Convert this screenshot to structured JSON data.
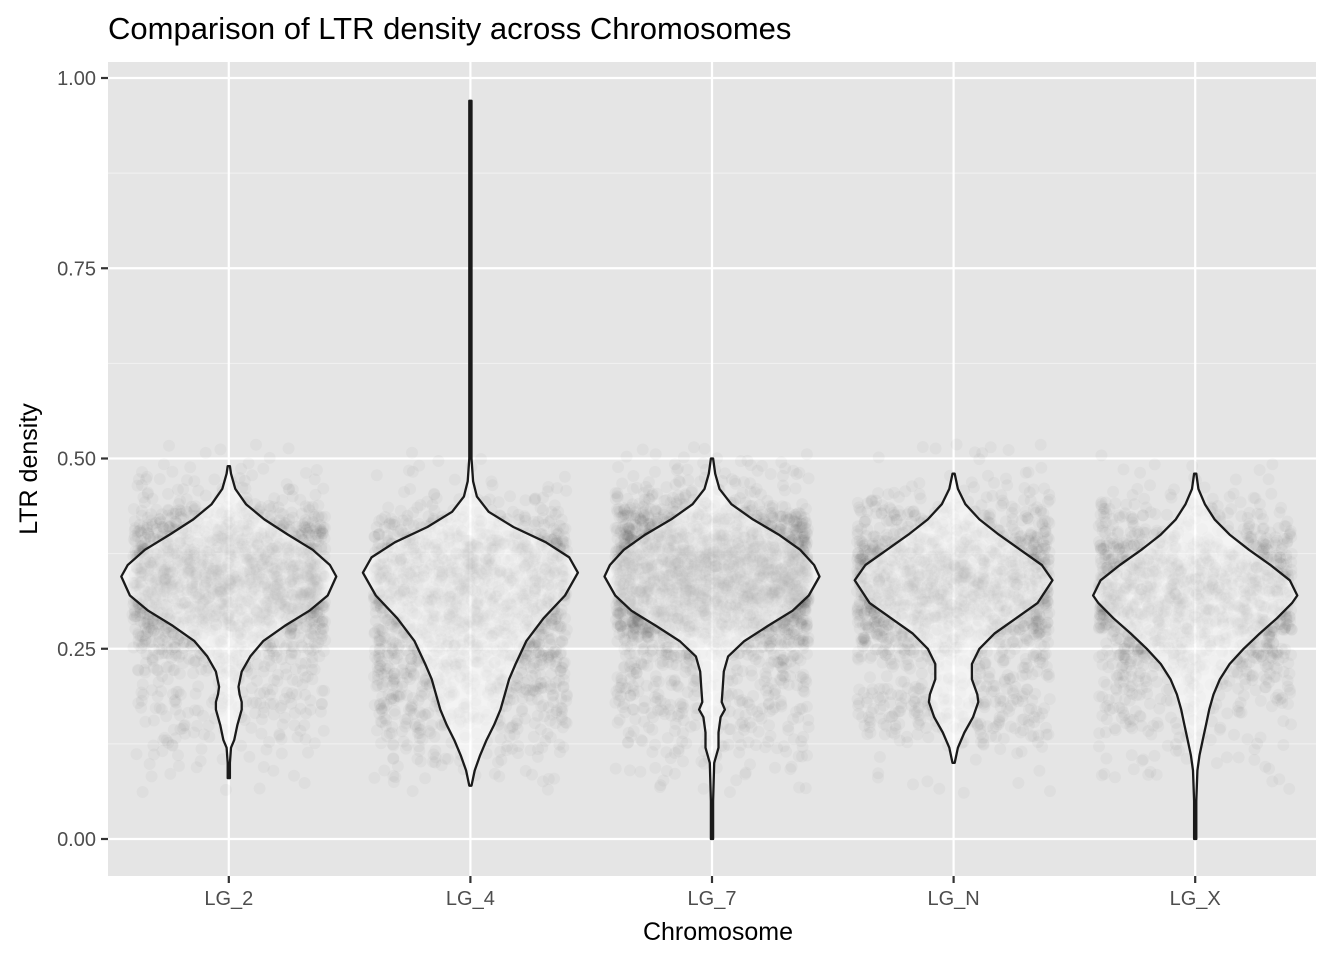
{
  "chart_data": {
    "type": "violin",
    "title": "Comparison of LTR density across Chromosomes",
    "xlabel": "Chromosome",
    "ylabel": "LTR density",
    "categories": [
      "LG_2",
      "LG_4",
      "LG_7",
      "LG_N",
      "LG_X"
    ],
    "ylim": [
      -0.05,
      1.04
    ],
    "y_ticks": [
      0.0,
      0.25,
      0.5,
      0.75,
      1.0
    ],
    "y_tick_labels": [
      "0.00",
      "0.25",
      "0.50",
      "0.75",
      "1.00"
    ],
    "grid": true,
    "background": "#e5e5e5",
    "points": "jittered, low alpha",
    "violins": [
      {
        "category": "LG_2",
        "min": 0.08,
        "max": 0.49,
        "profile": [
          [
            0.08,
            0.01
          ],
          [
            0.1,
            0.01
          ],
          [
            0.12,
            0.02
          ],
          [
            0.13,
            0.05
          ],
          [
            0.15,
            0.08
          ],
          [
            0.17,
            0.12
          ],
          [
            0.18,
            0.12
          ],
          [
            0.19,
            0.1
          ],
          [
            0.2,
            0.09
          ],
          [
            0.22,
            0.12
          ],
          [
            0.24,
            0.2
          ],
          [
            0.26,
            0.32
          ],
          [
            0.28,
            0.52
          ],
          [
            0.3,
            0.75
          ],
          [
            0.32,
            0.92
          ],
          [
            0.345,
            1.0
          ],
          [
            0.36,
            0.94
          ],
          [
            0.38,
            0.78
          ],
          [
            0.4,
            0.55
          ],
          [
            0.42,
            0.33
          ],
          [
            0.44,
            0.16
          ],
          [
            0.46,
            0.06
          ],
          [
            0.48,
            0.02
          ],
          [
            0.49,
            0.01
          ]
        ]
      },
      {
        "category": "LG_4",
        "min": 0.07,
        "max": 0.97,
        "profile": [
          [
            0.07,
            0.01
          ],
          [
            0.09,
            0.04
          ],
          [
            0.11,
            0.09
          ],
          [
            0.13,
            0.15
          ],
          [
            0.15,
            0.22
          ],
          [
            0.17,
            0.28
          ],
          [
            0.19,
            0.32
          ],
          [
            0.21,
            0.36
          ],
          [
            0.23,
            0.42
          ],
          [
            0.26,
            0.52
          ],
          [
            0.29,
            0.68
          ],
          [
            0.32,
            0.88
          ],
          [
            0.35,
            1.0
          ],
          [
            0.37,
            0.92
          ],
          [
            0.39,
            0.7
          ],
          [
            0.41,
            0.4
          ],
          [
            0.43,
            0.17
          ],
          [
            0.45,
            0.06
          ],
          [
            0.47,
            0.025
          ],
          [
            0.5,
            0.01
          ],
          [
            0.6,
            0.01
          ],
          [
            0.8,
            0.01
          ],
          [
            0.97,
            0.01
          ]
        ]
      },
      {
        "category": "LG_7",
        "min": 0.0,
        "max": 0.5,
        "profile": [
          [
            0.0,
            0.01
          ],
          [
            0.05,
            0.01
          ],
          [
            0.1,
            0.02
          ],
          [
            0.12,
            0.06
          ],
          [
            0.14,
            0.06
          ],
          [
            0.16,
            0.08
          ],
          [
            0.17,
            0.12
          ],
          [
            0.18,
            0.09
          ],
          [
            0.2,
            0.1
          ],
          [
            0.22,
            0.11
          ],
          [
            0.24,
            0.15
          ],
          [
            0.26,
            0.3
          ],
          [
            0.28,
            0.52
          ],
          [
            0.3,
            0.75
          ],
          [
            0.32,
            0.9
          ],
          [
            0.345,
            1.0
          ],
          [
            0.36,
            0.95
          ],
          [
            0.38,
            0.82
          ],
          [
            0.4,
            0.62
          ],
          [
            0.42,
            0.38
          ],
          [
            0.44,
            0.18
          ],
          [
            0.46,
            0.07
          ],
          [
            0.48,
            0.03
          ],
          [
            0.5,
            0.01
          ]
        ]
      },
      {
        "category": "LG_N",
        "min": 0.1,
        "max": 0.48,
        "profile": [
          [
            0.1,
            0.01
          ],
          [
            0.12,
            0.04
          ],
          [
            0.14,
            0.1
          ],
          [
            0.16,
            0.18
          ],
          [
            0.18,
            0.23
          ],
          [
            0.19,
            0.22
          ],
          [
            0.21,
            0.17
          ],
          [
            0.23,
            0.17
          ],
          [
            0.25,
            0.24
          ],
          [
            0.27,
            0.38
          ],
          [
            0.29,
            0.58
          ],
          [
            0.31,
            0.78
          ],
          [
            0.34,
            0.92
          ],
          [
            0.36,
            0.82
          ],
          [
            0.38,
            0.62
          ],
          [
            0.4,
            0.42
          ],
          [
            0.42,
            0.24
          ],
          [
            0.44,
            0.11
          ],
          [
            0.46,
            0.04
          ],
          [
            0.48,
            0.01
          ]
        ]
      },
      {
        "category": "LG_X",
        "min": 0.0,
        "max": 0.48,
        "profile": [
          [
            0.0,
            0.01
          ],
          [
            0.05,
            0.01
          ],
          [
            0.09,
            0.02
          ],
          [
            0.11,
            0.04
          ],
          [
            0.13,
            0.07
          ],
          [
            0.15,
            0.1
          ],
          [
            0.17,
            0.13
          ],
          [
            0.19,
            0.17
          ],
          [
            0.21,
            0.23
          ],
          [
            0.23,
            0.32
          ],
          [
            0.25,
            0.45
          ],
          [
            0.27,
            0.6
          ],
          [
            0.29,
            0.76
          ],
          [
            0.31,
            0.9
          ],
          [
            0.32,
            0.95
          ],
          [
            0.34,
            0.88
          ],
          [
            0.36,
            0.7
          ],
          [
            0.38,
            0.5
          ],
          [
            0.4,
            0.32
          ],
          [
            0.42,
            0.18
          ],
          [
            0.44,
            0.09
          ],
          [
            0.46,
            0.03
          ],
          [
            0.48,
            0.01
          ]
        ]
      }
    ]
  }
}
